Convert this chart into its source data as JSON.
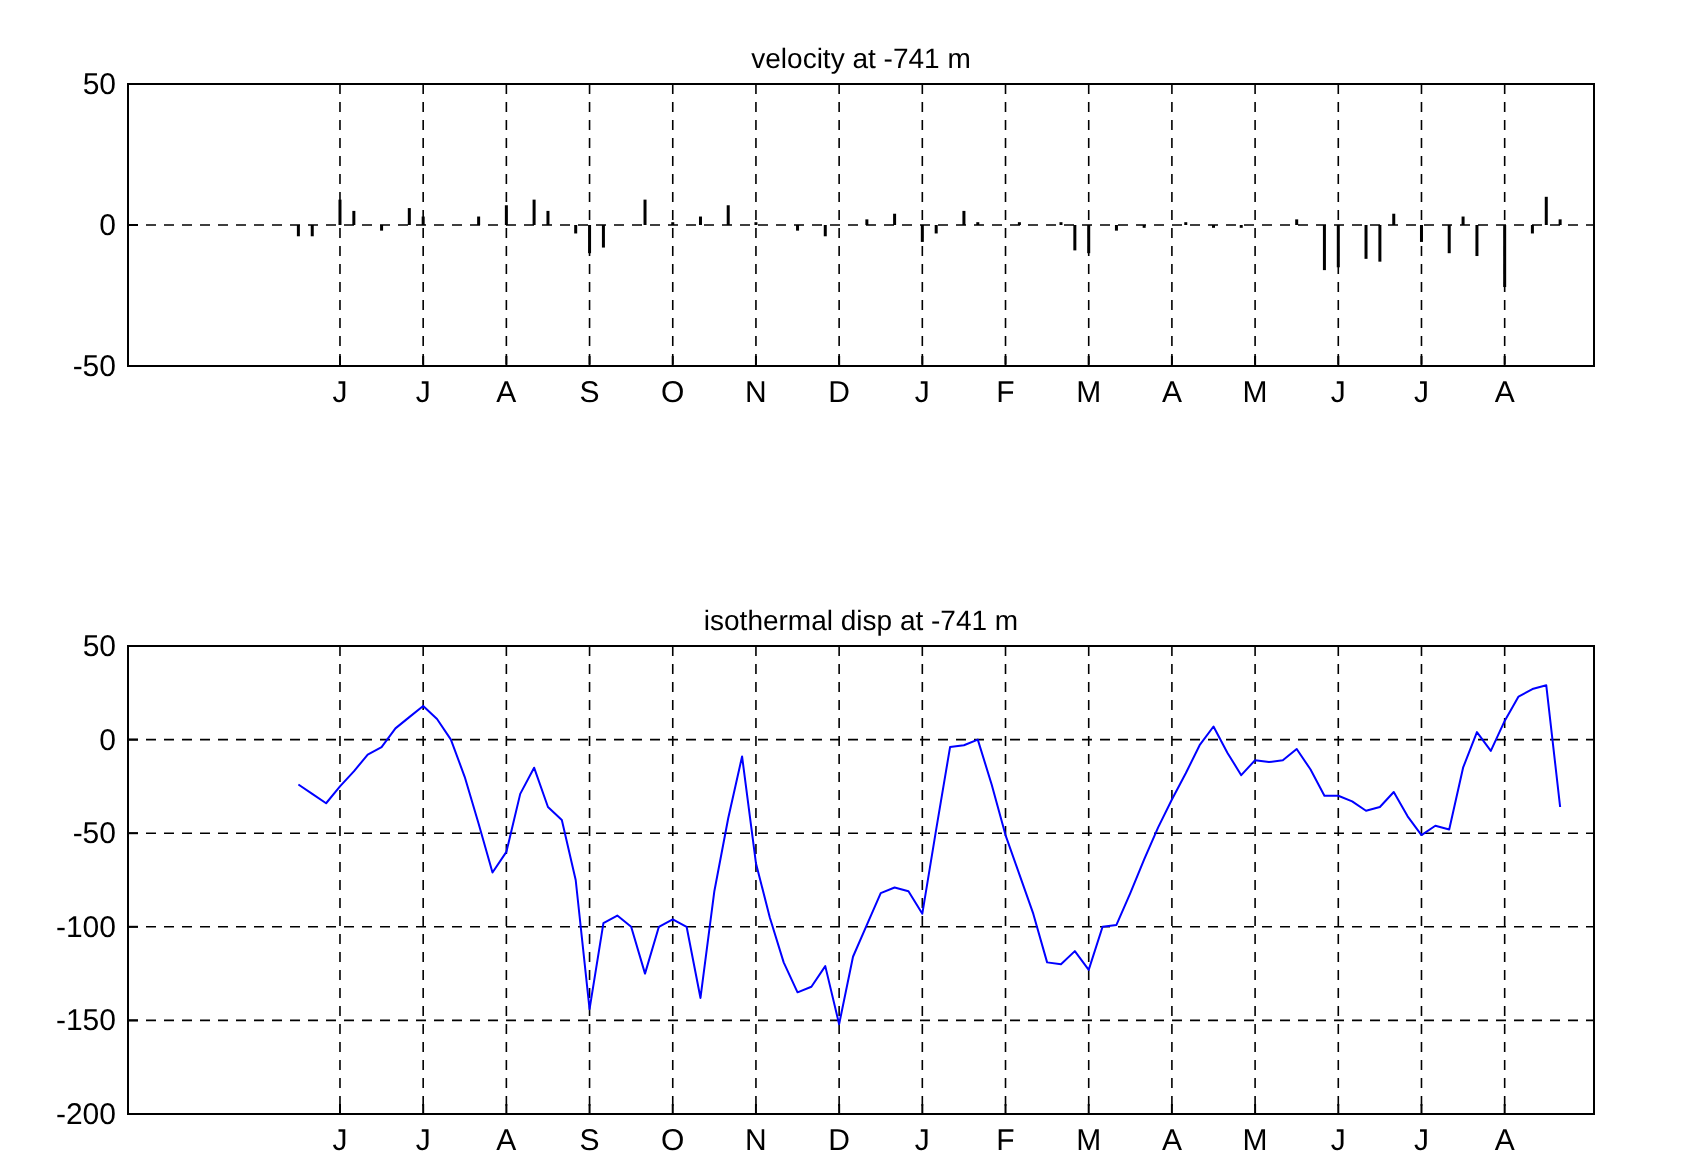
{
  "chart_data": [
    {
      "type": "bar",
      "title": "velocity at -741 m",
      "color": "#000000",
      "categories": [
        null,
        null,
        null,
        null,
        null,
        null,
        null,
        null,
        null,
        null,
        null,
        null,
        null,
        null,
        null,
        "J",
        null,
        null,
        null,
        null,
        null,
        "J",
        null,
        null,
        null,
        null,
        null,
        "A",
        null,
        null,
        null,
        null,
        null,
        "S",
        null,
        null,
        null,
        null,
        null,
        "O",
        null,
        null,
        null,
        null,
        null,
        "N",
        null,
        null,
        null,
        null,
        null,
        "D",
        null,
        null,
        null,
        null,
        null,
        "J",
        null,
        null,
        null,
        null,
        null,
        "F",
        null,
        null,
        null,
        null,
        null,
        "M",
        null,
        null,
        null,
        null,
        null,
        "A",
        null,
        null,
        null,
        null,
        null,
        "M",
        null,
        null,
        null,
        null,
        null,
        "J",
        null,
        null,
        null,
        null,
        null,
        "J",
        null,
        null,
        null,
        null,
        null,
        "A",
        null,
        null,
        null,
        null,
        null
      ],
      "values": [
        null,
        null,
        null,
        null,
        null,
        null,
        null,
        null,
        null,
        null,
        null,
        null,
        -4,
        -4,
        null,
        9,
        5,
        null,
        -2,
        null,
        6,
        3,
        null,
        0,
        null,
        3,
        null,
        7,
        null,
        9,
        5,
        null,
        -3,
        -10,
        -8,
        null,
        null,
        9,
        null,
        1,
        null,
        3,
        null,
        7,
        null,
        1,
        null,
        null,
        -2,
        null,
        -4,
        null,
        null,
        2,
        null,
        4,
        null,
        -6,
        -3,
        null,
        5,
        1,
        null,
        null,
        1,
        null,
        null,
        1,
        -9,
        -10,
        null,
        -2,
        null,
        -1,
        null,
        null,
        1,
        null,
        -1,
        null,
        -1,
        null,
        null,
        0,
        2,
        null,
        -16,
        -15,
        null,
        -12,
        -13,
        4,
        null,
        -6,
        null,
        -10,
        3,
        -11,
        null,
        -22,
        null,
        -3,
        10,
        2,
        null
      ],
      "ylim": [
        -50,
        50
      ],
      "yticks": [
        -50,
        0,
        50
      ],
      "grid": true
    },
    {
      "type": "line",
      "title": "isothermal disp at -741 m",
      "color": "#0000ff",
      "categories": [
        null,
        null,
        null,
        null,
        null,
        null,
        null,
        null,
        null,
        null,
        null,
        null,
        null,
        null,
        null,
        "J",
        null,
        null,
        null,
        null,
        null,
        "J",
        null,
        null,
        null,
        null,
        null,
        "A",
        null,
        null,
        null,
        null,
        null,
        "S",
        null,
        null,
        null,
        null,
        null,
        "O",
        null,
        null,
        null,
        null,
        null,
        "N",
        null,
        null,
        null,
        null,
        null,
        "D",
        null,
        null,
        null,
        null,
        null,
        "J",
        null,
        null,
        null,
        null,
        null,
        "F",
        null,
        null,
        null,
        null,
        null,
        "M",
        null,
        null,
        null,
        null,
        null,
        "A",
        null,
        null,
        null,
        null,
        null,
        "M",
        null,
        null,
        null,
        null,
        null,
        "J",
        null,
        null,
        null,
        null,
        null,
        "J",
        null,
        null,
        null,
        null,
        null,
        "A",
        null,
        null,
        null,
        null,
        null
      ],
      "values": [
        null,
        null,
        null,
        null,
        null,
        null,
        null,
        null,
        null,
        null,
        null,
        null,
        -24,
        -29,
        -34,
        -25,
        -17,
        -8,
        -4,
        6,
        12,
        18,
        11,
        0,
        -20,
        -45,
        -71,
        -60,
        -29,
        -15,
        -36,
        -43,
        -75,
        -144,
        -98,
        -94,
        -100,
        -125,
        -100,
        -96,
        -100,
        -138,
        -81,
        -42,
        -9,
        -66,
        -95,
        -119,
        -135,
        -132,
        -121,
        -152,
        -116,
        -99,
        -82,
        -79,
        -81,
        -93,
        -48,
        -4,
        -3,
        0,
        -24,
        -51,
        -72,
        -93,
        -119,
        -120,
        -113,
        -123,
        -100,
        -99,
        -82,
        -64,
        -47,
        -32,
        -18,
        -3,
        7,
        -7,
        -19,
        -11,
        -12,
        -11,
        -5,
        -16,
        -30,
        -30,
        -33,
        -38,
        -36,
        -28,
        -41,
        -51,
        -46,
        -48,
        -15,
        4,
        -6,
        10,
        23,
        27,
        29,
        -36,
        null
      ],
      "ylim": [
        -200,
        50
      ],
      "yticks": [
        -200,
        -150,
        -100,
        -50,
        0,
        50
      ],
      "grid": true
    }
  ]
}
